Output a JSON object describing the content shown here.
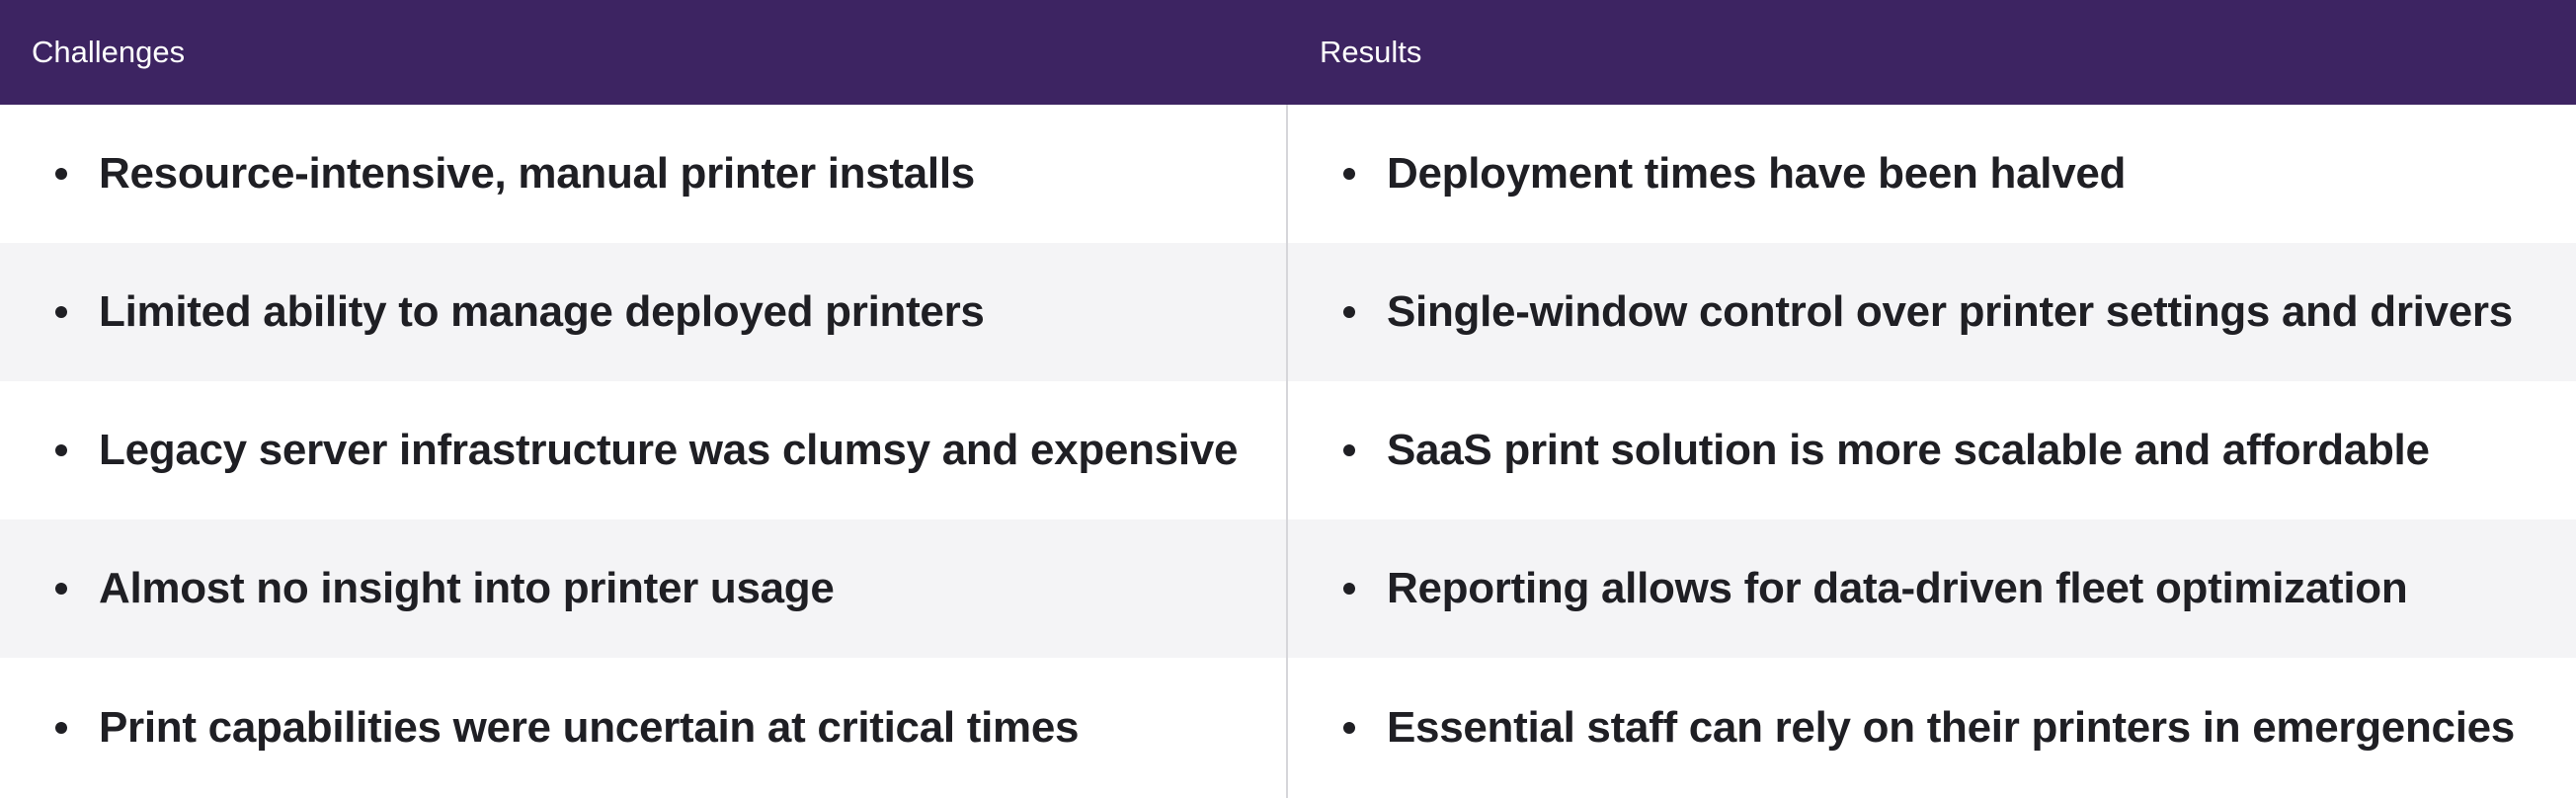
{
  "header": {
    "left_title": "Challenges",
    "right_title": "Results"
  },
  "rows": [
    {
      "challenge": "Resource-intensive, manual printer installs",
      "result": "Deployment times have been halved"
    },
    {
      "challenge": "Limited ability to manage deployed printers",
      "result": "Single-window control over printer settings and drivers"
    },
    {
      "challenge": "Legacy server infrastructure was clumsy and expensive",
      "result": "SaaS print solution is more scalable and affordable"
    },
    {
      "challenge": "Almost no insight into printer usage",
      "result": "Reporting allows for data-driven fleet optimization"
    },
    {
      "challenge": "Print capabilities were uncertain at critical times",
      "result": "Essential staff can rely on their printers in emergencies"
    }
  ],
  "colors": {
    "header_background": "#3d2462",
    "header_text": "#ffffff",
    "shaded_row": "#f4f4f6",
    "body_text": "#1f1f24"
  }
}
